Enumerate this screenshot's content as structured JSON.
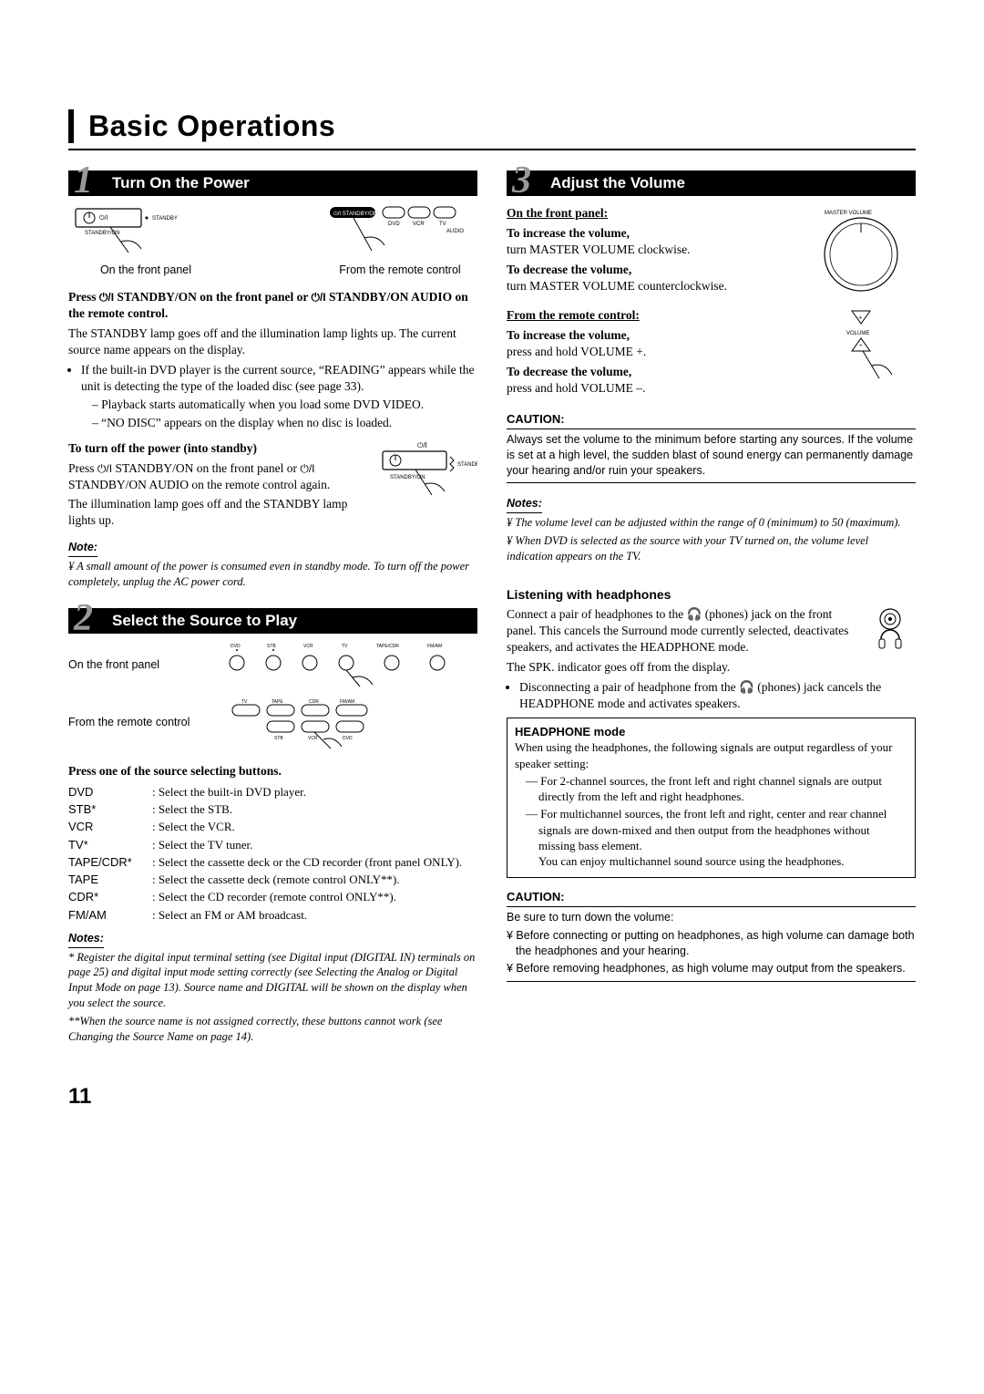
{
  "page": {
    "title": "Basic Operations",
    "number": "11"
  },
  "step1": {
    "num": "1",
    "title": "Turn On the Power",
    "fig_panel_label": "On the front panel",
    "fig_remote_label": "From the remote control",
    "panel_btn_text": "STANDBY/ON",
    "panel_led_text": "STANDBY",
    "remote_row_btn": "STANDBY/ON",
    "remote_row_btns": "DVD    VCR    TV",
    "remote_audio": "AUDIO",
    "press_line": "Press      STANDBY/ON on the front panel or       STANDBY/ON AUDIO on the remote control.",
    "p1": "The STANDBY lamp goes off and the illumination lamp lights up. The current source name appears on the display.",
    "b1": "If the built-in DVD player is the current source, “READING” appears while the unit is detecting the type of the loaded disc (see page 33).",
    "b1a": "Playback starts automatically when you load some DVD VIDEO.",
    "b1b": "“NO DISC” appears on the display when no disc is loaded.",
    "off_head": "To turn off the power (into standby)",
    "off_p1": "Press      STANDBY/ON on the front panel or       STANDBY/ON AUDIO on the remote control again.",
    "off_p2": "The illumination lamp goes off and the STANDBY lamp lights up.",
    "note_head": "Note:",
    "note_p": "¥ A small amount of the power is consumed even in standby mode. To turn off the power completely, unplug the AC power cord."
  },
  "step2": {
    "num": "2",
    "title": "Select the Source to Play",
    "fig_top": "On the front panel",
    "fig_bot": "From the remote control",
    "panel_labels": "DVD   STB   VCR   TV   TAPE/CDR   FM/AM",
    "remote_top": "TV   TAPE   CDR   FM/AM",
    "remote_bot": "STB   VCR   DVD",
    "press": "Press one of the source selecting buttons.",
    "rows": [
      [
        "DVD",
        ": Select the built-in DVD player."
      ],
      [
        "STB*",
        ": Select the STB."
      ],
      [
        "VCR",
        ": Select the VCR."
      ],
      [
        "TV*",
        ": Select the TV tuner."
      ],
      [
        "TAPE/CDR*",
        ": Select the cassette deck or the CD recorder (front panel ONLY)."
      ],
      [
        "TAPE",
        ": Select the cassette deck (remote control ONLY**)."
      ],
      [
        "CDR*",
        ": Select the CD recorder (remote control ONLY**)."
      ],
      [
        "FM/AM",
        ": Select an FM or AM broadcast."
      ]
    ],
    "notes_head": "Notes:",
    "n1": "* Register the digital input terminal setting (see  Digital input (DIGITAL IN) terminals  on page 25) and digital input mode setting correctly (see  Selecting the Analog or Digital Input Mode  on page 13). Source name and  DIGITAL  will be shown on the display when you select the source.",
    "n2": "**When the source name is not assigned correctly, these buttons cannot work (see  Changing the Source Name  on page 14)."
  },
  "step3": {
    "num": "3",
    "title": "Adjust the Volume",
    "fp_head": "On the front panel:",
    "inc_h": "To increase the volume,",
    "inc_p": "turn MASTER VOLUME clockwise.",
    "dec_h": "To decrease the volume,",
    "dec_p": "turn MASTER VOLUME counterclockwise.",
    "mv_label": "MASTER  VOLUME",
    "rc_head": "From the remote control:",
    "rc_inc_h": "To increase the volume,",
    "rc_inc_p": "press and hold VOLUME +.",
    "rc_dec_h": "To decrease the volume,",
    "rc_dec_p": "press and hold VOLUME –.",
    "vol_label": "VOLUME",
    "caution_h": "CAUTION:",
    "caution_p": "Always set the volume to the minimum before starting any sources. If the volume is set at a high level, the sudden blast of sound energy can permanently damage your hearing and/or ruin your speakers.",
    "notes_head": "Notes:",
    "note1": "¥ The volume level can be adjusted within the range of  0  (minimum) to  50  (maximum).",
    "note2": "¥ When DVD is selected as the source with your TV turned on, the volume level indication appears on the TV."
  },
  "hp": {
    "head": "Listening with headphones",
    "p1a": "Connect a pair of headphones to the ",
    "p1b": " (phones) jack on the front panel. This cancels the Surround mode currently selected, deactivates speakers, and activates the HEADPHONE mode.",
    "p2": "The SPK. indicator goes off from the display.",
    "b1a": "Disconnecting a pair of headphone from the ",
    "b1b": " (phones) jack cancels the HEADPHONE mode and activates speakers.",
    "box_h": "HEADPHONE mode",
    "box_p": "When using the headphones, the following signals are output regardless of your speaker setting:",
    "box_li1": "For 2-channel sources, the front left and right channel signals are output directly from the left and right headphones.",
    "box_li2": "For multichannel sources, the front left and right, center and rear channel signals are down-mixed and then output from the headphones without missing bass element.",
    "box_li2b": "You can enjoy multichannel sound source using the headphones.",
    "caution_h": "CAUTION:",
    "caution_intro": "Be sure to turn down the volume:",
    "c1": "¥ Before connecting or putting on headphones, as high volume can damage both the headphones and your hearing.",
    "c2": "¥ Before removing headphones, as high volume may output from the speakers."
  }
}
